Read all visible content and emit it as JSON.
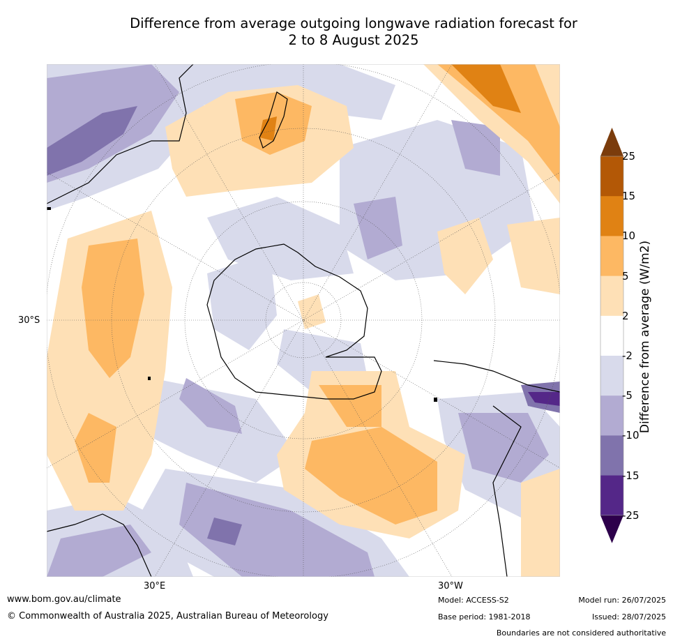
{
  "title_line1": "Difference from average outgoing longwave radiation forecast for",
  "title_line2": "2 to 8 August 2025",
  "graticule_labels": {
    "lat": "30°S",
    "lon_east": "30°E",
    "lon_west": "30°W"
  },
  "colorbar": {
    "label": "Difference from average (W/m2)",
    "ticks": [
      "25",
      "15",
      "10",
      "5",
      "2",
      "-2",
      "-5",
      "-10",
      "-15",
      "-25"
    ],
    "colors": [
      "#7b3c0c",
      "#b35806",
      "#e08214",
      "#fdb863",
      "#fee0b6",
      "#ffffff",
      "#d8daeb",
      "#b2abd2",
      "#8073ac",
      "#542788",
      "#2d004b"
    ]
  },
  "footer": {
    "url": "www.bom.gov.au/climate",
    "copyright": "© Commonwealth of Australia 2025, Australian Bureau of Meteorology",
    "model": "Model: ACCESS-S2",
    "base_period": "Base period: 1981-2018",
    "model_run": "Model run: 26/07/2025",
    "issued": "Issued: 28/07/2025",
    "disclaimer": "Boundaries are not considered authoritative"
  }
}
